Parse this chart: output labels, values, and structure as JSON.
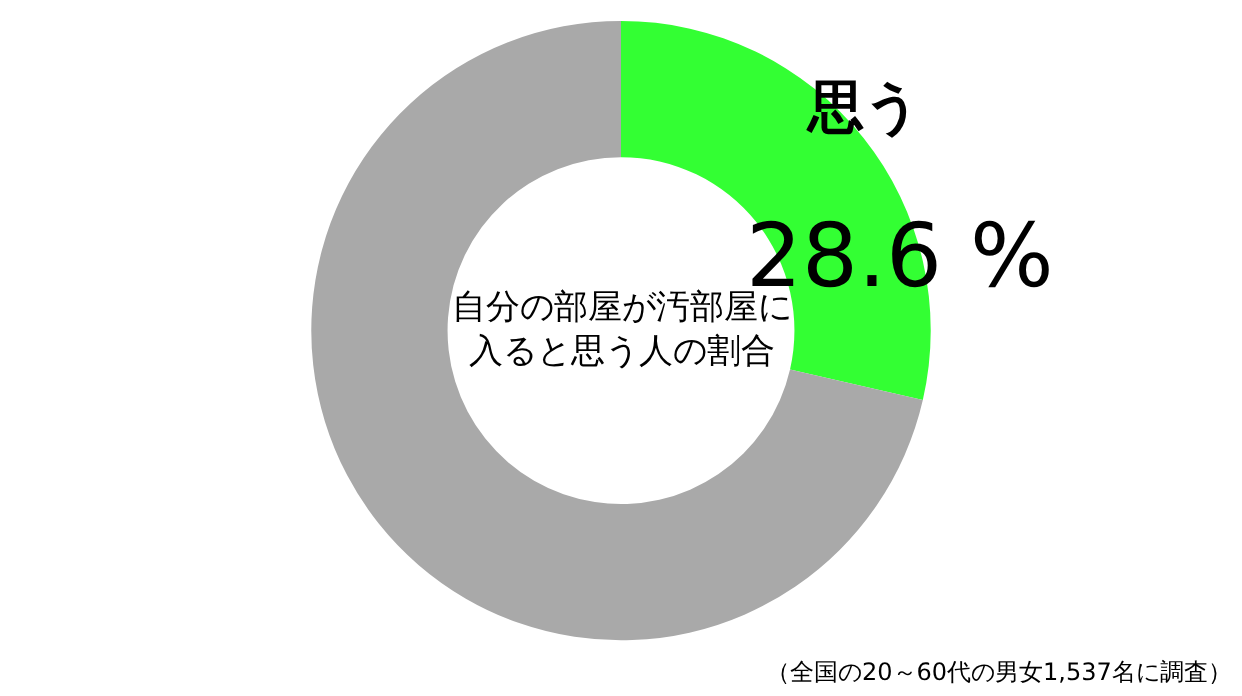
{
  "chart_data": {
    "type": "donut",
    "title": "自分の部屋が汚部屋に入ると思う人の割合",
    "categories": [
      "思う",
      null
    ],
    "values": [
      28.6,
      71.4
    ],
    "colors": [
      "#33ff33",
      "#a9a9a9"
    ],
    "value_labels": [
      "28.6 %",
      null
    ],
    "legend": false,
    "annotations": [
      "（全国の20～60代の男女1,537名に調査）"
    ]
  }
}
